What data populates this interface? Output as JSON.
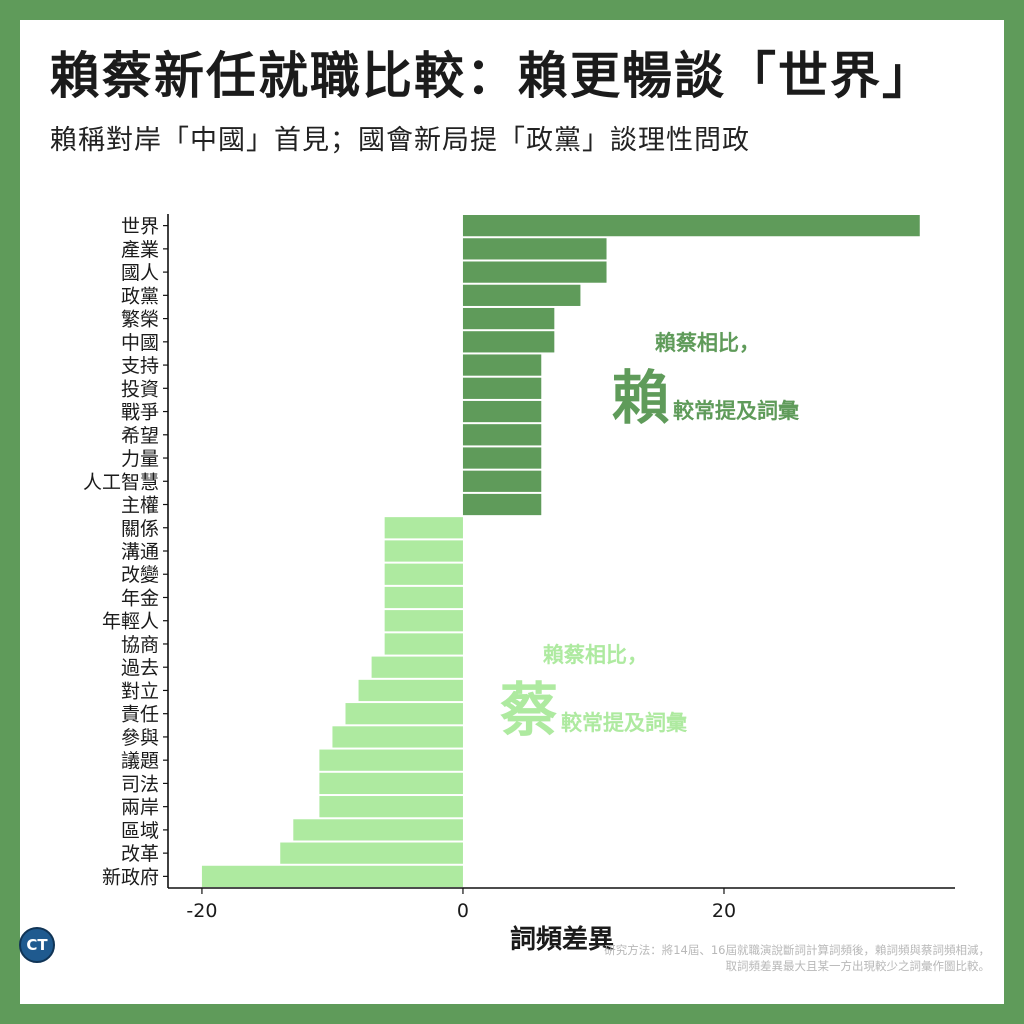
{
  "title": "賴蔡新任就職比較：賴更暢談「世界」",
  "subtitle": "賴稱對岸「中國」首見；國會新局提「政黨」談理性問政",
  "colors": {
    "lai": "#5f9b5a",
    "tsai": "#aeeaa0",
    "frame": "#5f9b5a"
  },
  "annotation_lai": {
    "line1": "賴蔡相比，",
    "big": "賴",
    "rest": "較常提及詞彙"
  },
  "annotation_tsai": {
    "line1": "賴蔡相比，",
    "big": "蔡",
    "rest": "較常提及詞彙"
  },
  "footnote": {
    "line1": "研究方法：將14屆、16屆就職演說斷詞計算詞頻後，賴詞頻與蔡詞頻相減，",
    "line2": "取詞頻差異最大且某一方出現較少之詞彙作圖比較。"
  },
  "logo_text": "CT",
  "logo_icon": "ct-logo-icon",
  "chart_data": {
    "type": "bar",
    "orientation": "horizontal",
    "categories": [
      "世界",
      "產業",
      "國人",
      "政黨",
      "繁榮",
      "中國",
      "支持",
      "投資",
      "戰爭",
      "希望",
      "力量",
      "人工智慧",
      "主權",
      "關係",
      "溝通",
      "改變",
      "年金",
      "年輕人",
      "協商",
      "過去",
      "對立",
      "責任",
      "參與",
      "議題",
      "司法",
      "兩岸",
      "區域",
      "改革",
      "新政府"
    ],
    "values": [
      35,
      11,
      11,
      9,
      7,
      7,
      6,
      6,
      6,
      6,
      6,
      6,
      6,
      -6,
      -6,
      -6,
      -6,
      -6,
      -6,
      -7,
      -8,
      -9,
      -10,
      -11,
      -11,
      -11,
      -13,
      -14,
      -20
    ],
    "xlabel": "詞頻差異",
    "xticks": [
      -20,
      0,
      20
    ],
    "xlim": [
      -22.6,
      37.7
    ],
    "grid": false,
    "legend": "none"
  }
}
